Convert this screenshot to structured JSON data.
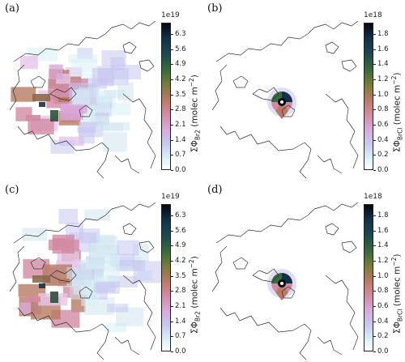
{
  "panels": [
    {
      "label": "(a)",
      "multiplier": "1e19",
      "ticks": [
        "6.3",
        "5.6",
        "4.9",
        "4.2",
        "3.5",
        "2.8",
        "2.1",
        "1.4",
        "0.7",
        "0.0"
      ],
      "colorbar_label": {
        "prefix": "ΣΦ",
        "sub": "Br2",
        "unit": "(molec m",
        "sup": "−2",
        "close": ")"
      },
      "field": "broad"
    },
    {
      "label": "(b)",
      "multiplier": "1e18",
      "ticks": [
        "1.8",
        "1.6",
        "1.4",
        "1.2",
        "1.0",
        "0.8",
        "0.6",
        "0.4",
        "0.2",
        "0.0"
      ],
      "colorbar_label": {
        "prefix": "ΣΦ",
        "sub": "BrCl",
        "unit": "(molec m",
        "sup": "−2",
        "close": ")"
      },
      "field": "point"
    },
    {
      "label": "(c)",
      "multiplier": "1e19",
      "ticks": [
        "6.3",
        "5.6",
        "4.9",
        "4.2",
        "3.5",
        "2.8",
        "2.1",
        "1.4",
        "0.7",
        "0.0"
      ],
      "colorbar_label": {
        "prefix": "ΣΦ",
        "sub": "Br2",
        "unit": "(molec m",
        "sup": "−2",
        "close": ")"
      },
      "field": "broad"
    },
    {
      "label": "(d)",
      "multiplier": "1e18",
      "ticks": [
        "1.8",
        "1.6",
        "1.4",
        "1.2",
        "1.0",
        "0.8",
        "0.6",
        "0.4",
        "0.2",
        "0.0"
      ],
      "colorbar_label": {
        "prefix": "ΣΦ",
        "sub": "BrCl",
        "unit": "(molec m",
        "sup": "−2",
        "close": ")"
      },
      "field": "point"
    }
  ],
  "colormap": [
    "#070810",
    "#123049",
    "#3a6b3a",
    "#b77a62",
    "#d28aa1",
    "#d9a8d8",
    "#c7c7f0",
    "#d8f0f5",
    "#ffffff"
  ]
}
